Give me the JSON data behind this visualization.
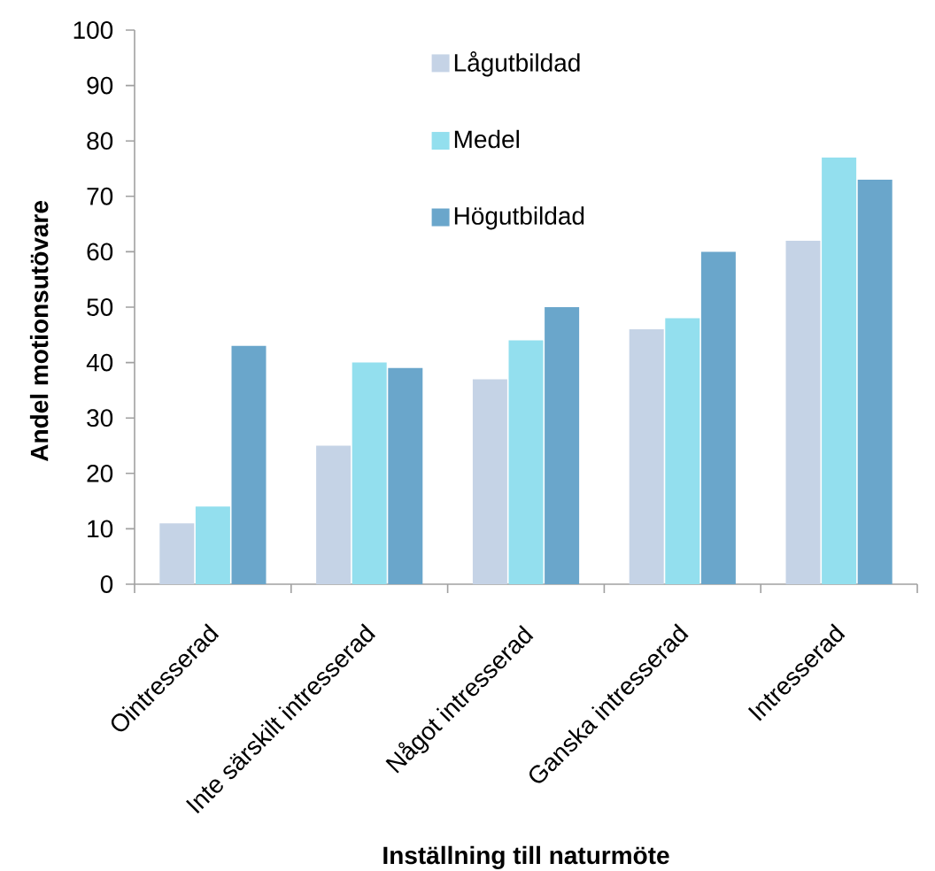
{
  "chart_data": {
    "type": "bar",
    "xlabel": "Inställning till naturmöte",
    "ylabel": "Andel motionsutövare",
    "categories": [
      "Ointresserad",
      "Inte särskilt intresserad",
      "Något intresserad",
      "Ganska intresserad",
      "Intresserad"
    ],
    "series": [
      {
        "name": "Lågutbildad",
        "color": "#c5d3e6",
        "values": [
          11,
          25,
          37,
          46,
          62
        ]
      },
      {
        "name": "Medel",
        "color": "#93dfee",
        "values": [
          14,
          40,
          44,
          48,
          77
        ]
      },
      {
        "name": "Högutbildad",
        "color": "#6aa6cb",
        "values": [
          43,
          39,
          50,
          60,
          73
        ]
      }
    ],
    "ylim": [
      0,
      100
    ],
    "yticks": [
      0,
      10,
      20,
      30,
      40,
      50,
      60,
      70,
      80,
      90,
      100
    ],
    "legend": "top"
  }
}
